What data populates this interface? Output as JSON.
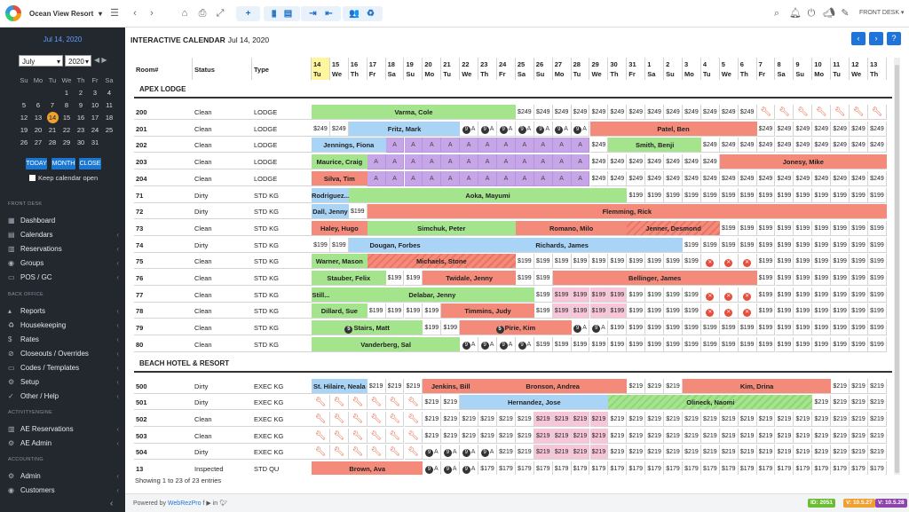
{
  "topbar": {
    "property": "Ocean View Resort",
    "role": "FRONT DESK ▾"
  },
  "sidebar": {
    "date": "Jul 14, 2020",
    "month": "July",
    "year": "2020",
    "weekdays": [
      "Su",
      "Mo",
      "Tu",
      "We",
      "Th",
      "Fr",
      "Sa"
    ],
    "weeks": [
      [
        "28",
        "29",
        "30",
        "1",
        "2",
        "3",
        "4"
      ],
      [
        "5",
        "6",
        "7",
        "8",
        "9",
        "10",
        "11"
      ],
      [
        "12",
        "13",
        "14",
        "15",
        "16",
        "17",
        "18"
      ],
      [
        "19",
        "20",
        "21",
        "22",
        "23",
        "24",
        "25"
      ],
      [
        "26",
        "27",
        "28",
        "29",
        "30",
        "31",
        "1"
      ]
    ],
    "today_btn": "TODAY",
    "month_btn": "MONTH",
    "close_btn": "CLOSE",
    "keep_open": "Keep calendar open",
    "sec_front_desk": "FRONT DESK",
    "sec_back_office": "BACK OFFICE",
    "sec_activity": "ACTIVITYENGINE",
    "sec_accounting": "ACCOUNTING",
    "items": {
      "dashboard": "Dashboard",
      "calendars": "Calendars",
      "reservations": "Reservations",
      "groups": "Groups",
      "pos": "POS / GC",
      "reports": "Reports",
      "housekeeping": "Housekeeping",
      "rates": "Rates",
      "closeouts": "Closeouts / Overrides",
      "codes": "Codes / Templates",
      "setup": "Setup",
      "other": "Other / Help",
      "ae_res": "AE Reservations",
      "ae_admin": "AE Admin",
      "admin": "Admin",
      "customers": "Customers"
    }
  },
  "calendar": {
    "title": "INTERACTIVE CALENDAR",
    "date": "Jul 14, 2020",
    "col_room": "Room#",
    "col_status": "Status",
    "col_type": "Type",
    "days": [
      [
        "14",
        "Tu"
      ],
      [
        "15",
        "We"
      ],
      [
        "16",
        "Th"
      ],
      [
        "17",
        "Fr"
      ],
      [
        "18",
        "Sa"
      ],
      [
        "19",
        "Su"
      ],
      [
        "20",
        "Mo"
      ],
      [
        "21",
        "Tu"
      ],
      [
        "22",
        "We"
      ],
      [
        "23",
        "Th"
      ],
      [
        "24",
        "Fr"
      ],
      [
        "25",
        "Sa"
      ],
      [
        "26",
        "Su"
      ],
      [
        "27",
        "Mo"
      ],
      [
        "28",
        "Tu"
      ],
      [
        "29",
        "We"
      ],
      [
        "30",
        "Th"
      ],
      [
        "31",
        "Fr"
      ],
      [
        "1",
        "Sa"
      ],
      [
        "2",
        "Su"
      ],
      [
        "3",
        "Mo"
      ],
      [
        "4",
        "Tu"
      ],
      [
        "5",
        "We"
      ],
      [
        "6",
        "Th"
      ],
      [
        "7",
        "Fr"
      ],
      [
        "8",
        "Sa"
      ],
      [
        "9",
        "Su"
      ],
      [
        "10",
        "Mo"
      ],
      [
        "11",
        "Tu"
      ],
      [
        "12",
        "We"
      ],
      [
        "13",
        "Th"
      ]
    ],
    "sections": [
      "APEX LODGE",
      "BEACH HOTEL & RESORT"
    ],
    "showing": "Showing 1 to 23 of 23 entries"
  },
  "rooms": [
    {
      "room": "200",
      "status": "Clean",
      "type": "LODGE"
    },
    {
      "room": "201",
      "status": "Clean",
      "type": "LODGE"
    },
    {
      "room": "202",
      "status": "Clean",
      "type": "LODGE"
    },
    {
      "room": "203",
      "status": "Clean",
      "type": "LODGE"
    },
    {
      "room": "204",
      "status": "Clean",
      "type": "LODGE"
    },
    {
      "room": "71",
      "status": "Dirty",
      "type": "STD KG"
    },
    {
      "room": "72",
      "status": "Dirty",
      "type": "STD KG"
    },
    {
      "room": "73",
      "status": "Clean",
      "type": "STD KG"
    },
    {
      "room": "74",
      "status": "Dirty",
      "type": "STD KG"
    },
    {
      "room": "75",
      "status": "Clean",
      "type": "STD KG"
    },
    {
      "room": "76",
      "status": "Clean",
      "type": "STD KG"
    },
    {
      "room": "77",
      "status": "Clean",
      "type": "STD KG"
    },
    {
      "room": "78",
      "status": "Clean",
      "type": "STD KG"
    },
    {
      "room": "79",
      "status": "Clean",
      "type": "STD KG"
    },
    {
      "room": "80",
      "status": "Clean",
      "type": "STD KG"
    },
    {
      "room": "500",
      "status": "Dirty",
      "type": "EXEC KG"
    },
    {
      "room": "501",
      "status": "Dirty",
      "type": "EXEC KG"
    },
    {
      "room": "502",
      "status": "Clean",
      "type": "EXEC KG"
    },
    {
      "room": "503",
      "status": "Clean",
      "type": "EXEC KG"
    },
    {
      "room": "504",
      "status": "Dirty",
      "type": "EXEC KG"
    },
    {
      "room": "13",
      "status": "Inspected",
      "type": "STD QU"
    }
  ],
  "bookings": [
    {
      "row": 0,
      "start": 0,
      "len": 11,
      "name": "Varma, Cole",
      "c": "g"
    },
    {
      "row": 1,
      "start": 2,
      "len": 6,
      "name": "Fritz, Mark",
      "c": "b"
    },
    {
      "row": 1,
      "start": 15,
      "len": 9,
      "name": "Patel, Ben",
      "c": "r"
    },
    {
      "row": 2,
      "start": 0,
      "len": 4,
      "name": "Jennings, Fiona",
      "c": "b"
    },
    {
      "row": 2,
      "start": 16,
      "len": 5,
      "name": "Smith, Benji",
      "c": "g"
    },
    {
      "row": 3,
      "start": 0,
      "len": 3,
      "name": "Maurice, Craig",
      "c": "g"
    },
    {
      "row": 3,
      "start": 22,
      "len": 9,
      "name": "Jonesy, Mike",
      "c": "r"
    },
    {
      "row": 4,
      "start": 0,
      "len": 3,
      "name": "Silva, Tim",
      "c": "r"
    },
    {
      "row": 5,
      "start": 0,
      "len": 2,
      "name": "Rodriguez...",
      "c": "b"
    },
    {
      "row": 5,
      "start": 2,
      "len": 15,
      "name": "Aoka, Mayumi",
      "c": "g"
    },
    {
      "row": 6,
      "start": 0,
      "len": 2,
      "name": "Dall, Jenny",
      "c": "b"
    },
    {
      "row": 6,
      "start": 3,
      "len": 28,
      "name": "Flemming, Rick",
      "c": "r"
    },
    {
      "row": 7,
      "start": 0,
      "len": 3,
      "name": "Haley, Hugo",
      "c": "r"
    },
    {
      "row": 7,
      "start": 3,
      "len": 8,
      "name": "Simchuk, Peter",
      "c": "g"
    },
    {
      "row": 7,
      "start": 11,
      "len": 6,
      "name": "Romano, Milo",
      "c": "r"
    },
    {
      "row": 7,
      "start": 17,
      "len": 5,
      "name": "Jenner, Desmond",
      "c": "hatch"
    },
    {
      "row": 8,
      "start": 2,
      "len": 5,
      "name": "Dougan, Forbes",
      "c": "b"
    },
    {
      "row": 8,
      "start": 7,
      "len": 13,
      "name": "Richards, James",
      "c": "b"
    },
    {
      "row": 9,
      "start": 0,
      "len": 3,
      "name": "Warner, Mason",
      "c": "g"
    },
    {
      "row": 9,
      "start": 3,
      "len": 8,
      "name": "Michaels, Stone",
      "c": "hatch"
    },
    {
      "row": 10,
      "start": 0,
      "len": 4,
      "name": "Stauber, Felix",
      "c": "g"
    },
    {
      "row": 10,
      "start": 6,
      "len": 5,
      "name": "Twidale, Jenny",
      "c": "r"
    },
    {
      "row": 10,
      "start": 13,
      "len": 11,
      "name": "Bellinger, James",
      "c": "r"
    },
    {
      "row": 11,
      "start": 0,
      "len": 1,
      "name": "Still...",
      "c": "g"
    },
    {
      "row": 11,
      "start": 1,
      "len": 11,
      "name": "Delabar, Jenny",
      "c": "g"
    },
    {
      "row": 12,
      "start": 0,
      "len": 3,
      "name": "Dillard, Sue",
      "c": "g"
    },
    {
      "row": 12,
      "start": 7,
      "len": 5,
      "name": "Timmins, Judy",
      "c": "r"
    },
    {
      "row": 13,
      "start": 0,
      "len": 6,
      "name": "Stairs, Matt",
      "c": "g",
      "badge": "5"
    },
    {
      "row": 13,
      "start": 8,
      "len": 6,
      "name": "Pirie, Kim",
      "c": "r",
      "badge": "5"
    },
    {
      "row": 14,
      "start": 0,
      "len": 8,
      "name": "Vanderberg, Sal",
      "c": "g"
    },
    {
      "row": 15,
      "start": 0,
      "len": 3,
      "name": "St. Hilaire, Neala",
      "c": "b"
    },
    {
      "row": 15,
      "start": 6,
      "len": 3,
      "name": "Jenkins, Bill",
      "c": "r"
    },
    {
      "row": 15,
      "start": 9,
      "len": 8,
      "name": "Bronson, Andrea",
      "c": "r"
    },
    {
      "row": 15,
      "start": 20,
      "len": 8,
      "name": "Kim, Drina",
      "c": "r"
    },
    {
      "row": 16,
      "start": 8,
      "len": 8,
      "name": "Hernandez, Jose",
      "c": "b"
    },
    {
      "row": 16,
      "start": 16,
      "len": 11,
      "name": "Olineck, Naomi",
      "c": "hatchg"
    },
    {
      "row": 20,
      "start": 0,
      "len": 6,
      "name": "Brown, Ava",
      "c": "r"
    }
  ],
  "prices": {
    "p249": "$249",
    "p219": "$219",
    "p199": "$199",
    "p179": "$179",
    "oa": "A"
  },
  "versions": {
    "id": "ID: 2051",
    "v1": "V: 10.5.27",
    "v2": "V: 10.5.28"
  },
  "footer": {
    "powered": "Powered by",
    "brand": "WebRezPro"
  }
}
